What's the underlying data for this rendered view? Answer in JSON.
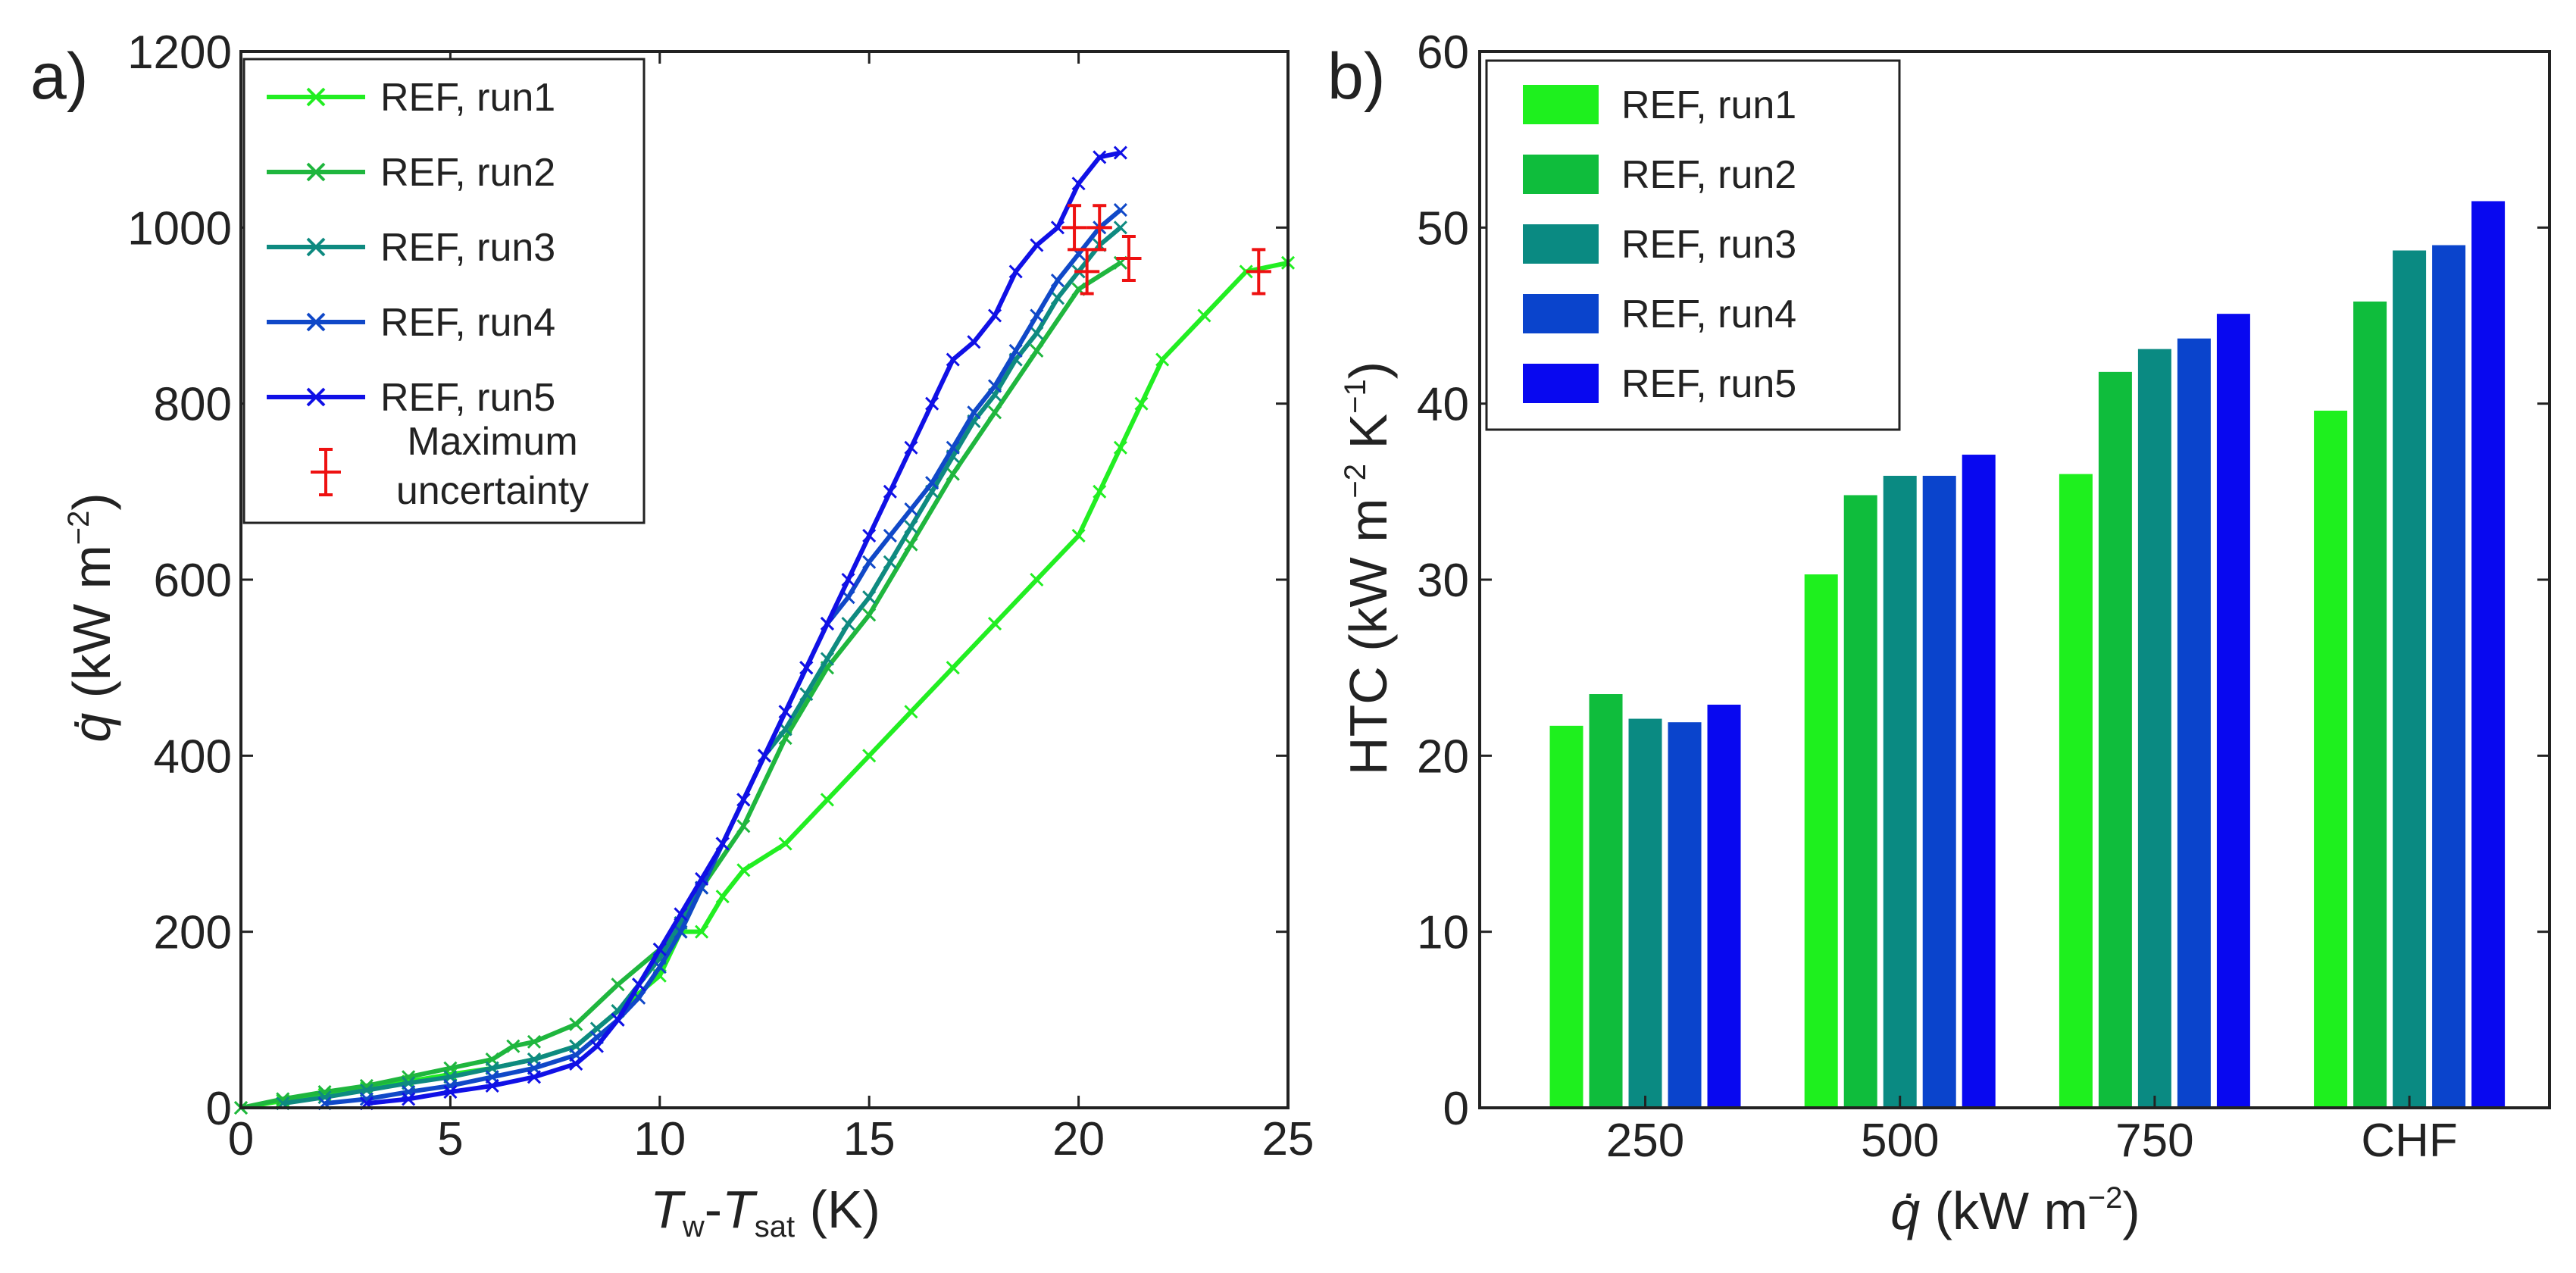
{
  "chart_data": [
    {
      "panel_label": "a)",
      "type": "line",
      "xlabel_parts": {
        "t1": "T",
        "s1": "w",
        "mid": "-",
        "t2": "T",
        "s2": "sat",
        "unit": " (K)"
      },
      "ylabel": {
        "q": "q̇",
        "open": " (kW m",
        "exp": "−2",
        "close": ")"
      },
      "xlim": [
        0,
        25
      ],
      "ylim": [
        0,
        1200
      ],
      "xticks": [
        "0",
        "5",
        "10",
        "15",
        "20",
        "25"
      ],
      "yticks": [
        "0",
        "200",
        "400",
        "600",
        "800",
        "1000",
        "1200"
      ],
      "legend_loc": "top-left",
      "uncertainty_label_line1": "Maximum",
      "uncertainty_label_line2": "uncertainty",
      "series": [
        {
          "name": "REF, run1",
          "color": "#22ee22",
          "x": [
            0,
            1,
            2,
            3,
            4,
            5,
            6,
            7,
            8,
            9,
            10,
            10.5,
            11,
            11.5,
            12,
            13,
            14,
            15,
            16,
            17,
            18,
            19,
            20,
            20.5,
            21,
            21.5,
            22,
            23,
            24,
            25
          ],
          "y": [
            0,
            8,
            15,
            22,
            30,
            38,
            45,
            55,
            70,
            110,
            150,
            200,
            200,
            240,
            270,
            300,
            350,
            400,
            450,
            500,
            550,
            600,
            650,
            700,
            750,
            800,
            850,
            900,
            950,
            960
          ]
        },
        {
          "name": "REF, run2",
          "color": "#1fb63e",
          "x": [
            0,
            1,
            2,
            3,
            4,
            5,
            6,
            6.5,
            7,
            8,
            9,
            10,
            10.5,
            11,
            12,
            13,
            14,
            15,
            16,
            17,
            18,
            19,
            20,
            21
          ],
          "y": [
            0,
            10,
            18,
            25,
            35,
            45,
            55,
            70,
            75,
            95,
            140,
            180,
            200,
            250,
            320,
            420,
            500,
            560,
            640,
            720,
            790,
            860,
            930,
            960
          ]
        },
        {
          "name": "REF, run3",
          "color": "#0e8a80",
          "x": [
            1,
            2,
            3,
            4,
            5,
            6,
            7,
            8,
            8.5,
            9,
            9.5,
            10,
            10.5,
            11,
            11.5,
            12,
            12.5,
            13,
            13.5,
            14,
            14.5,
            15,
            15.5,
            16,
            16.5,
            17,
            17.5,
            18,
            18.5,
            19,
            19.5,
            20,
            20.5,
            21
          ],
          "y": [
            5,
            12,
            20,
            28,
            35,
            45,
            55,
            70,
            90,
            110,
            140,
            170,
            210,
            250,
            300,
            350,
            400,
            430,
            470,
            510,
            550,
            580,
            620,
            660,
            700,
            740,
            780,
            810,
            850,
            880,
            920,
            950,
            980,
            1000
          ]
        },
        {
          "name": "REF, run4",
          "color": "#1048c8",
          "x": [
            2,
            3,
            4,
            5,
            6,
            7,
            8,
            8.5,
            9,
            9.5,
            10,
            10.5,
            11,
            11.5,
            12,
            12.5,
            13,
            13.5,
            14,
            14.5,
            15,
            15.5,
            16,
            16.5,
            17,
            17.5,
            18,
            18.5,
            19,
            19.5,
            20,
            20.5,
            21
          ],
          "y": [
            5,
            10,
            18,
            25,
            35,
            45,
            60,
            80,
            100,
            125,
            160,
            200,
            250,
            300,
            350,
            400,
            450,
            500,
            550,
            580,
            620,
            650,
            680,
            710,
            750,
            790,
            820,
            860,
            900,
            940,
            970,
            1000,
            1020
          ]
        },
        {
          "name": "REF, run5",
          "color": "#1010e6",
          "x": [
            3,
            4,
            5,
            6,
            7,
            8,
            8.5,
            9,
            9.5,
            10,
            10.5,
            11,
            11.5,
            12,
            12.5,
            13,
            13.5,
            14,
            14.5,
            15,
            15.5,
            16,
            16.5,
            17,
            17.5,
            18,
            18.5,
            19,
            19.5,
            20,
            20.5,
            21
          ],
          "y": [
            5,
            10,
            18,
            25,
            35,
            50,
            70,
            100,
            140,
            180,
            220,
            260,
            300,
            350,
            400,
            450,
            500,
            550,
            600,
            650,
            700,
            750,
            800,
            850,
            870,
            900,
            950,
            980,
            1000,
            1050,
            1080,
            1085
          ]
        }
      ],
      "uncertainty_points": [
        {
          "x": 19.9,
          "y": 1000,
          "xerr": 0.3,
          "yerr": 25
        },
        {
          "x": 20.5,
          "y": 1000,
          "xerr": 0.3,
          "yerr": 25
        },
        {
          "x": 20.2,
          "y": 950,
          "xerr": 0.3,
          "yerr": 25
        },
        {
          "x": 21.2,
          "y": 965,
          "xerr": 0.3,
          "yerr": 25
        },
        {
          "x": 24.3,
          "y": 950,
          "xerr": 0.3,
          "yerr": 25
        }
      ]
    },
    {
      "panel_label": "b)",
      "type": "bar",
      "ylabel": {
        "prefix": "HTC (kW m",
        "exp1": "−2",
        "mid": " K",
        "exp2": "−1",
        "close": ")"
      },
      "xlabel": {
        "q": "q̇",
        "open": " (kW m",
        "exp": "−2",
        "close": ")"
      },
      "categories": [
        "250",
        "500",
        "750",
        "CHF"
      ],
      "ylim": [
        0,
        60
      ],
      "yticks": [
        "0",
        "10",
        "20",
        "30",
        "40",
        "50",
        "60"
      ],
      "legend_loc": "top-left",
      "series": [
        {
          "name": "REF, run1",
          "color": "#1ef01e",
          "values": [
            21.7,
            30.3,
            36.0,
            39.6
          ]
        },
        {
          "name": "REF, run2",
          "color": "#0fbd3c",
          "values": [
            23.5,
            34.8,
            41.8,
            45.8
          ]
        },
        {
          "name": "REF, run3",
          "color": "#0a8a82",
          "values": [
            22.1,
            35.9,
            43.1,
            48.7
          ]
        },
        {
          "name": "REF, run4",
          "color": "#0a44cc",
          "values": [
            21.9,
            35.9,
            43.7,
            49.0
          ]
        },
        {
          "name": "REF, run5",
          "color": "#0808f0",
          "values": [
            22.9,
            37.1,
            45.1,
            51.5
          ]
        }
      ]
    }
  ]
}
